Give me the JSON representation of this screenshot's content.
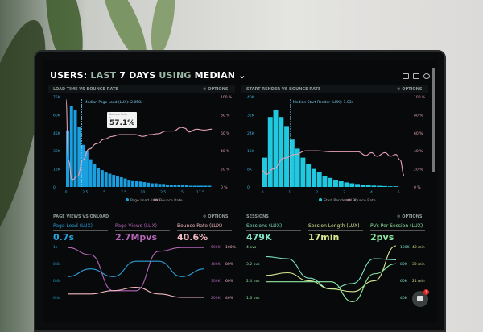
{
  "header": {
    "title_parts": [
      "USERS:",
      "LAST",
      "7 DAYS",
      "USING",
      "MEDIAN"
    ],
    "dropdown_icon": "chevron-down-icon",
    "icons": [
      "monitor-icon",
      "chart-icon",
      "help-icon"
    ]
  },
  "panels": {
    "load_time": {
      "title": "LOAD TIME VS BOUNCE RATE",
      "options": "OPTIONS"
    },
    "start_render": {
      "title": "START RENDER VS BOUNCE RATE",
      "options": "OPTIONS"
    },
    "page_views": {
      "title": "PAGE VIEWS VS ONLOAD",
      "options": "OPTIONS",
      "metrics": [
        {
          "label": "Page Load (LUX)",
          "value": "0.7s",
          "color": "#2a9fd8"
        },
        {
          "label": "Page Views (LUX)",
          "value": "2.7Mpvs",
          "color": "#b565b8"
        },
        {
          "label": "Bounce Rate (LUX)",
          "value": "40.6%",
          "color": "#f2b8c0"
        }
      ]
    },
    "sessions": {
      "title": "SESSIONS",
      "options": "OPTIONS",
      "metrics": [
        {
          "label": "Sessions (LUX)",
          "value": "479K",
          "color": "#7fe0c0"
        },
        {
          "label": "Session Length (LUX)",
          "value": "17min",
          "color": "#d8e890"
        },
        {
          "label": "PVs Per Session (LUX)",
          "value": "2pvs",
          "color": "#8fe8a0"
        }
      ]
    }
  },
  "tooltip": {
    "label": "Bounce Rate",
    "sub": "%",
    "value": "57.1%"
  },
  "chart_data": [
    {
      "type": "bar",
      "title": "LOAD TIME VS BOUNCE RATE",
      "annotation": "Median Page Load (LUX): 2.058s",
      "median": 2.058,
      "x_ticks": [
        "0",
        "2.5",
        "5",
        "7.5",
        "10",
        "12.5",
        "15",
        "17.5"
      ],
      "xlim": [
        0,
        19.5
      ],
      "y_ticks": [
        "0",
        "15K",
        "30K",
        "45K",
        "60K",
        "75K"
      ],
      "ylim": [
        0,
        75000
      ],
      "y2_ticks": [
        "0 %",
        "20 %",
        "40 %",
        "60 %",
        "80 %",
        "100 %"
      ],
      "y2lim": [
        0,
        100
      ],
      "series": [
        {
          "name": "Page Load (LUX)",
          "type": "bar",
          "color": "#1a9fe0",
          "bin": 0.5,
          "values": [
            47000,
            67000,
            64000,
            50000,
            35000,
            30000,
            23000,
            19000,
            16000,
            14000,
            12000,
            11000,
            10000,
            9000,
            8000,
            7000,
            6000,
            5500,
            5000,
            4500,
            4000,
            3500,
            3000,
            3000,
            2500,
            2500,
            2000,
            2000,
            2000,
            1500,
            1500,
            1500,
            1000,
            1000,
            1000,
            1000,
            1000,
            1000
          ]
        },
        {
          "name": "Bounce Rate",
          "type": "line",
          "color": "#e8a2b4",
          "x": [
            0,
            0.3,
            0.8,
            1.5,
            2.2,
            3,
            4,
            5,
            6,
            7,
            8,
            9,
            10,
            11,
            12,
            13,
            14,
            15,
            15.5,
            16,
            17,
            18,
            19
          ],
          "values": [
            97,
            30,
            8,
            12,
            30,
            42,
            48,
            53,
            56,
            58,
            58,
            58,
            56,
            58,
            59,
            62,
            62,
            66,
            65,
            61,
            64,
            63,
            64
          ]
        }
      ]
    },
    {
      "type": "bar",
      "title": "START RENDER VS BOUNCE RATE",
      "annotation": "Median Start Render (LUX): 1.03s",
      "median": 1.03,
      "x_ticks": [
        "0",
        "1",
        "2",
        "3",
        "4",
        "5"
      ],
      "xlim": [
        0,
        5.2
      ],
      "y_ticks": [
        "0",
        "8K",
        "16K",
        "24K",
        "32K",
        "40K"
      ],
      "ylim": [
        0,
        40000
      ],
      "y2_ticks": [
        "0 %",
        "20 %",
        "40 %",
        "60 %",
        "80 %",
        "100 %"
      ],
      "y2lim": [
        0,
        100
      ],
      "series": [
        {
          "name": "Start Render (LUX)",
          "type": "bar",
          "color": "#20c8e0",
          "bin": 0.2,
          "values": [
            13000,
            31000,
            34000,
            31000,
            27000,
            21000,
            17000,
            13000,
            10000,
            8000,
            6500,
            5000,
            4000,
            3200,
            2500,
            2000,
            1600,
            1300,
            1000,
            800,
            600,
            500,
            400,
            300,
            300
          ]
        },
        {
          "name": "Bounce Rate",
          "type": "line",
          "color": "#e8a2b4",
          "x": [
            0,
            0.15,
            0.4,
            0.8,
            1.2,
            1.6,
            2,
            2.5,
            3,
            3.5,
            3.8,
            4,
            4.2,
            4.5,
            4.7,
            4.9,
            5.05,
            5.2
          ],
          "values": [
            18,
            14,
            20,
            32,
            36,
            40,
            40,
            39,
            39,
            39,
            35,
            38,
            34,
            38,
            34,
            36,
            30,
            13
          ]
        }
      ]
    },
    {
      "type": "line",
      "title": "PAGE VIEWS VS ONLOAD",
      "y_ticks": [
        "0.4s",
        "0.6s",
        "0.8s",
        "1s"
      ],
      "y2_ticks": [
        "200K",
        "300K",
        "400K",
        "500K"
      ],
      "y3_ticks": [
        "40%",
        "60%",
        "80%",
        "100%"
      ],
      "series": [
        {
          "name": "Page Load (LUX)",
          "color": "#2a9fd8",
          "values": [
            0.6,
            0.7,
            0.6,
            0.8,
            0.8,
            0.6,
            0.7
          ]
        },
        {
          "name": "Page Views (LUX)",
          "color": "#b565b8",
          "values": [
            490,
            450,
            250,
            250,
            470,
            490,
            490
          ]
        },
        {
          "name": "Bounce Rate (LUX)",
          "color": "#f2b8c0",
          "values": [
            42,
            42,
            46,
            50,
            42,
            38,
            38
          ]
        }
      ]
    },
    {
      "type": "line",
      "title": "SESSIONS",
      "y_ticks": [
        "1.6 pvs",
        "2.4 pvs",
        "3.2 pvs",
        "4 pvs"
      ],
      "y2_ticks": [
        "40K",
        "60K",
        "80K",
        "100K"
      ],
      "y3_ticks": [
        "24 min",
        "32 min",
        "40 min"
      ],
      "series": [
        {
          "name": "Sessions (LUX)",
          "color": "#7fe0c0",
          "values": [
            80,
            76,
            40,
            20,
            30,
            76,
            74
          ]
        },
        {
          "name": "Session Length (LUX)",
          "color": "#d8e890",
          "values": [
            18,
            20,
            14,
            8,
            6,
            14,
            40
          ]
        },
        {
          "name": "PVs Per Session (LUX)",
          "color": "#8fe8a0",
          "values": [
            2.2,
            2.2,
            2.2,
            2.2,
            1.2,
            2.6,
            3.1
          ]
        }
      ]
    }
  ],
  "chat": {
    "badge": "1",
    "icon": "chat-icon"
  }
}
